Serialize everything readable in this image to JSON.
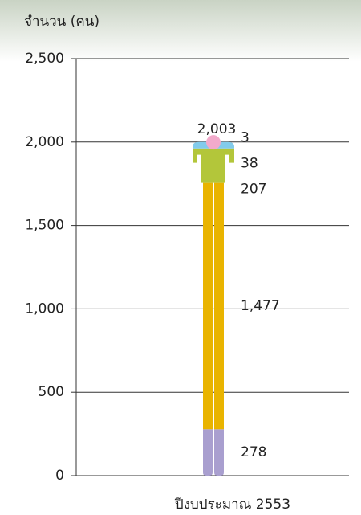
{
  "chart_data": {
    "type": "stacked-figure",
    "y_axis_label": "จำนวน (คน)",
    "categories": [
      "ปีงบประมาณ 2553"
    ],
    "series": [
      {
        "color": "#a99fcf",
        "values": [
          278
        ]
      },
      {
        "color": "#e9b400",
        "values": [
          1477
        ],
        "value_labels": [
          "1,477"
        ]
      },
      {
        "color": "#b3c63a",
        "values": [
          207
        ]
      },
      {
        "color": "#82cbeb",
        "values": [
          38
        ]
      },
      {
        "color": "#f2aacb",
        "values": [
          3
        ]
      }
    ],
    "total": {
      "value": 2003,
      "label": "2,003"
    },
    "ylim": [
      0,
      2500
    ],
    "yticks": [
      0,
      {
        "value": 500,
        "label": "500"
      },
      {
        "value": 1000,
        "label": "1,000"
      },
      {
        "value": 1500,
        "label": "1,500"
      },
      {
        "value": 2000,
        "label": "2,000"
      },
      {
        "value": 2500,
        "label": "2,500"
      }
    ],
    "grid": true
  }
}
